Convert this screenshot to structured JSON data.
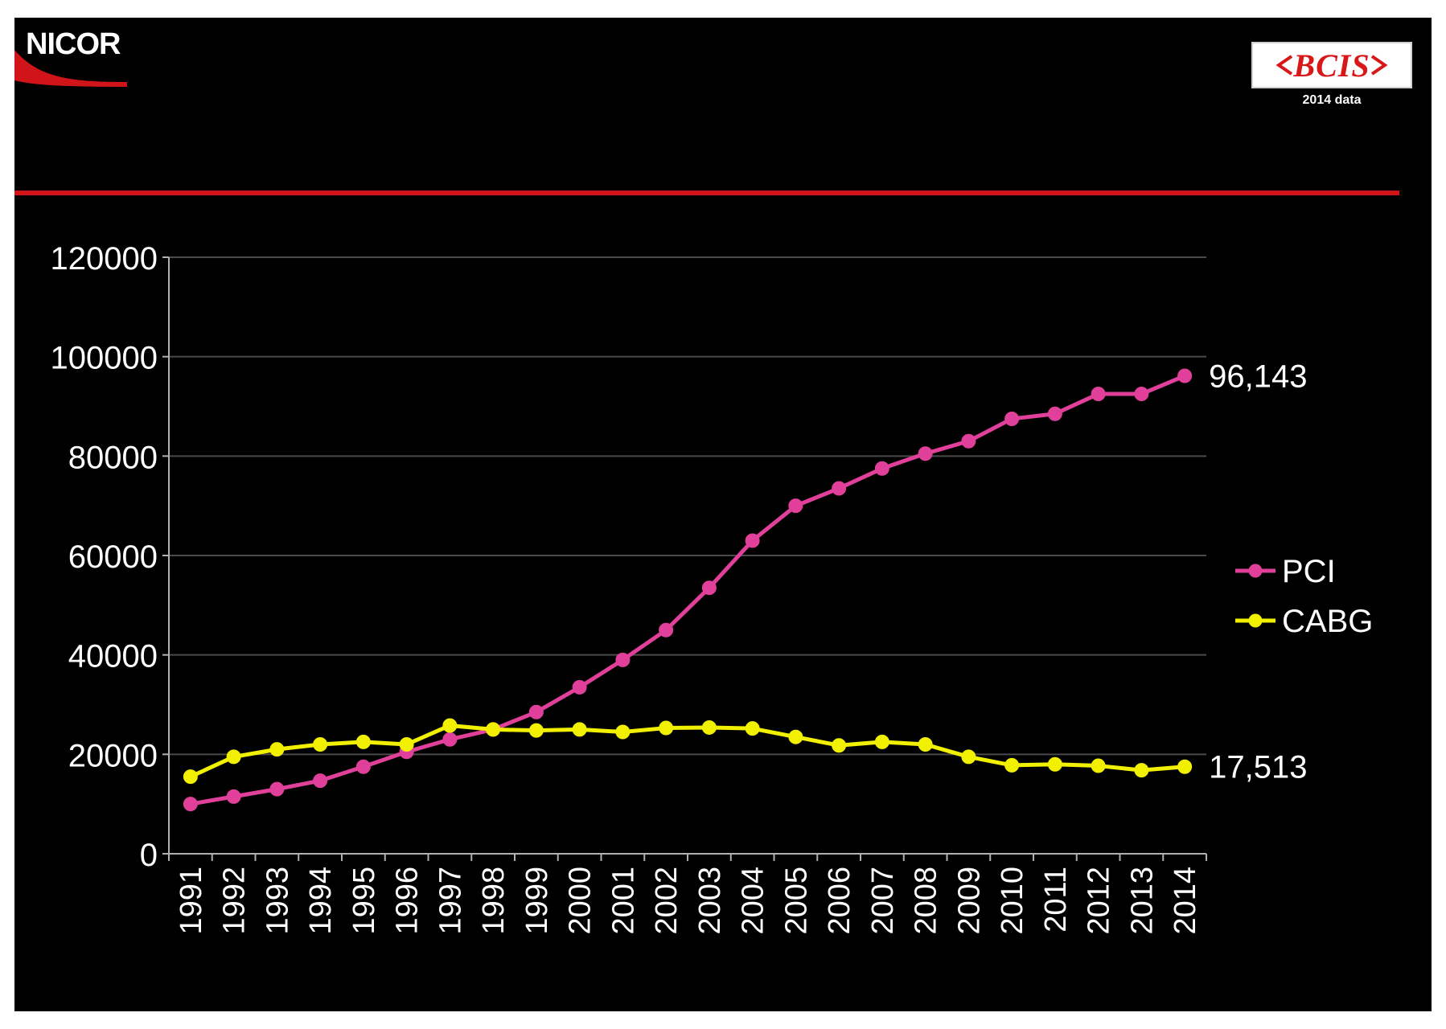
{
  "header": {
    "nicor_logo_text": "NICOR",
    "bcis_logo_text": "BCIS",
    "bcis_caption": "2014 data"
  },
  "colors": {
    "background": "#000000",
    "accent_rule": "#d0141a",
    "pci": "#e0409a",
    "cabg": "#f0f000",
    "gridline": "#4a4a4a",
    "axis": "#b0b0b0",
    "text": "#ffffff"
  },
  "chart_data": {
    "type": "line",
    "title": "",
    "xlabel": "",
    "ylabel": "",
    "ylim": [
      0,
      120000
    ],
    "yticks": [
      0,
      20000,
      40000,
      60000,
      80000,
      100000,
      120000
    ],
    "ytick_labels": [
      "0",
      "20000",
      "40000",
      "60000",
      "80000",
      "100000",
      "120000"
    ],
    "grid": true,
    "legend_position": "right",
    "categories": [
      "1991",
      "1992",
      "1993",
      "1994",
      "1995",
      "1996",
      "1997",
      "1998",
      "1999",
      "2000",
      "2001",
      "2002",
      "2003",
      "2004",
      "2005",
      "2006",
      "2007",
      "2008",
      "2009",
      "2010",
      "2011",
      "2012",
      "2013",
      "2014"
    ],
    "series": [
      {
        "name": "PCI",
        "color": "#e0409a",
        "values": [
          10000,
          11500,
          13000,
          14700,
          17500,
          20500,
          23000,
          25000,
          28500,
          33500,
          39000,
          45000,
          53500,
          63000,
          70000,
          73500,
          77500,
          80500,
          83000,
          87500,
          88500,
          92500,
          92500,
          96143
        ],
        "end_label": "96,143"
      },
      {
        "name": "CABG",
        "color": "#f0f000",
        "values": [
          15500,
          19500,
          21000,
          22000,
          22500,
          22000,
          25800,
          25000,
          24800,
          25000,
          24500,
          25300,
          25400,
          25200,
          23500,
          21800,
          22500,
          22000,
          19500,
          17800,
          18000,
          17700,
          16800,
          17513
        ],
        "end_label": "17,513"
      }
    ]
  }
}
